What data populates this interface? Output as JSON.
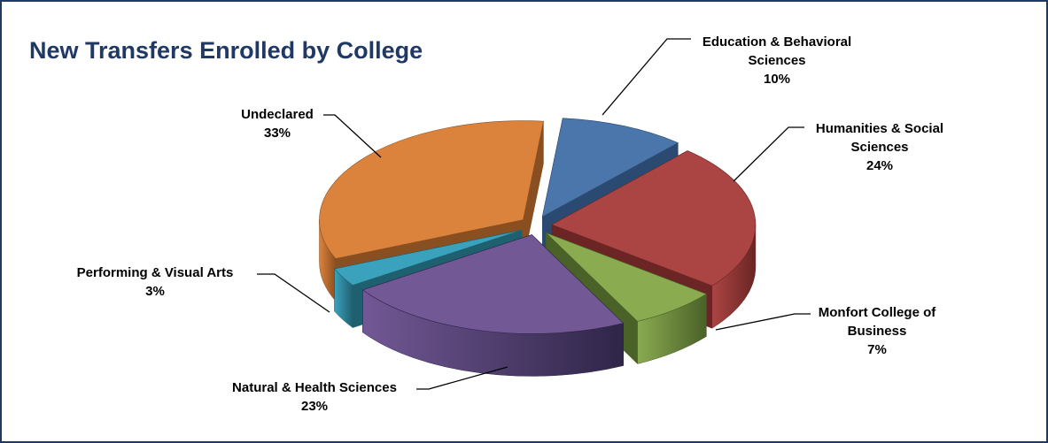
{
  "chart_data": {
    "type": "pie",
    "style": "3d-exploded",
    "title": "New Transfers Enrolled by College",
    "slices": [
      {
        "label_lines": [
          "Education & Behavioral",
          "Sciences"
        ],
        "percent_label": "10%",
        "value": 10,
        "color": "#4a76ac",
        "color_dark": "#2b4a72"
      },
      {
        "label_lines": [
          "Humanities & Social",
          "Sciences"
        ],
        "percent_label": "24%",
        "value": 24,
        "color": "#ab4543",
        "color_dark": "#6a2524"
      },
      {
        "label_lines": [
          "Monfort College of",
          "Business"
        ],
        "percent_label": "7%",
        "value": 7,
        "color": "#8aab50",
        "color_dark": "#4a6128"
      },
      {
        "label_lines": [
          "Natural & Health Sciences"
        ],
        "percent_label": "23%",
        "value": 23,
        "color": "#725895",
        "color_dark": "#2f2548"
      },
      {
        "label_lines": [
          "Performing & Visual Arts"
        ],
        "percent_label": "3%",
        "value": 3,
        "color": "#3aa2bc",
        "color_dark": "#1f6070"
      },
      {
        "label_lines": [
          "Undeclared"
        ],
        "percent_label": "33%",
        "value": 33,
        "color": "#db823d",
        "color_dark": "#8a4f20"
      }
    ]
  }
}
